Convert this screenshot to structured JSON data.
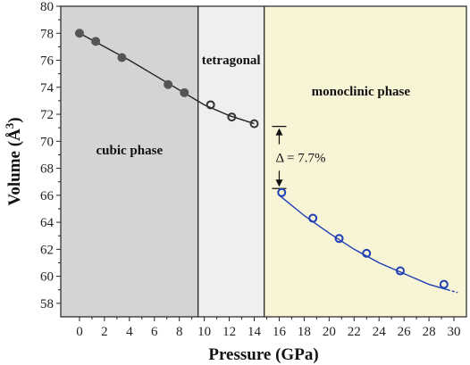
{
  "chart_data": {
    "type": "scatter",
    "title": "",
    "xlabel": "Pressure (GPa)",
    "ylabel": "Volume (Å",
    "ylabel_sup": "3",
    "ylabel_close": ")",
    "xlim": [
      -1.5,
      31
    ],
    "ylim": [
      57,
      80
    ],
    "x_ticks": [
      0,
      2,
      4,
      6,
      8,
      10,
      12,
      14,
      16,
      18,
      20,
      22,
      24,
      26,
      28,
      30
    ],
    "y_ticks": [
      58,
      60,
      62,
      64,
      66,
      68,
      70,
      72,
      74,
      76,
      78,
      80
    ],
    "grid": false,
    "regions": [
      {
        "name": "cubic phase",
        "x_start": -1.5,
        "x_end": 9.5,
        "color": "#d4d4d4"
      },
      {
        "name": "tetragonal",
        "x_start": 9.5,
        "x_end": 14.8,
        "color": "#efefef"
      },
      {
        "name": "monoclinic phase",
        "x_start": 14.8,
        "x_end": 31,
        "color": "#f8f4d6"
      }
    ],
    "series": [
      {
        "phase": "cubic",
        "marker": "filled-circle",
        "color": "#555555",
        "x": [
          0,
          1.3,
          3.4,
          7.1,
          8.4
        ],
        "y": [
          78.0,
          77.4,
          76.2,
          74.2,
          73.6
        ]
      },
      {
        "phase": "tetragonal",
        "marker": "open-circle",
        "color": "#333333",
        "x": [
          10.5,
          12.2,
          14.0
        ],
        "y": [
          72.7,
          71.8,
          71.3
        ]
      },
      {
        "phase": "monoclinic",
        "marker": "open-circle",
        "color": "#1f3fb4",
        "x": [
          16.2,
          18.7,
          20.8,
          23.0,
          25.7,
          29.2
        ],
        "y": [
          66.2,
          64.3,
          62.8,
          61.7,
          60.4,
          59.4
        ]
      }
    ],
    "fits": [
      {
        "color": "#222222",
        "x": [
          0,
          2,
          4,
          6,
          8,
          10,
          12,
          14
        ],
        "y": [
          78.0,
          77.0,
          76.0,
          74.9,
          73.8,
          72.7,
          71.9,
          71.3
        ]
      },
      {
        "color": "#1f3fb4",
        "x": [
          16,
          18,
          20,
          22,
          24,
          26,
          28,
          29.5
        ],
        "y": [
          66.0,
          64.5,
          63.2,
          62.0,
          61.0,
          60.2,
          59.4,
          59.0
        ]
      },
      {
        "color": "#1f3fb4",
        "dashed": true,
        "x": [
          29.5,
          30.3
        ],
        "y": [
          59.0,
          58.8
        ]
      }
    ],
    "annotation": {
      "text": "Δ = 7.7%",
      "x": 16.0,
      "y_top": 71.1,
      "y_bottom": 66.5
    }
  }
}
